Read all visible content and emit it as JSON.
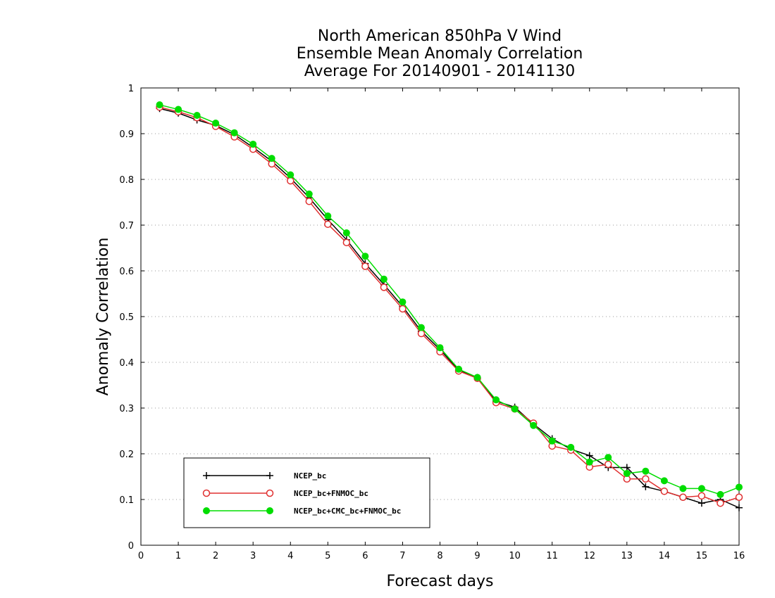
{
  "chart_data": {
    "type": "line",
    "title_lines": [
      "North American 850hPa V Wind",
      "Ensemble Mean Anomaly Correlation",
      "Average For 20140901 - 20141130"
    ],
    "xlabel": "Forecast days",
    "ylabel": "Anomaly Correlation",
    "xlim": [
      0,
      16
    ],
    "ylim": [
      0,
      1
    ],
    "xticks": [
      0,
      1,
      2,
      3,
      4,
      5,
      6,
      7,
      8,
      9,
      10,
      11,
      12,
      13,
      14,
      15,
      16
    ],
    "yticks": [
      0,
      0.1,
      0.2,
      0.3,
      0.4,
      0.5,
      0.6,
      0.7,
      0.8,
      0.9,
      1
    ],
    "ytick_labels": [
      "0",
      "0.1",
      "0.2",
      "0.3",
      "0.4",
      "0.5",
      "0.6",
      "0.7",
      "0.8",
      "0.9",
      "1"
    ],
    "grid": "horizontal-dotted",
    "legend_position": "bottom-left",
    "x": [
      0.5,
      1,
      1.5,
      2,
      2.5,
      3,
      3.5,
      4,
      4.5,
      5,
      5.5,
      6,
      6.5,
      7,
      7.5,
      8,
      8.5,
      9,
      9.5,
      10,
      10.5,
      11,
      11.5,
      12,
      12.5,
      13,
      13.5,
      14,
      14.5,
      15,
      15.5,
      16
    ],
    "series": [
      {
        "name": "NCEP_bc",
        "color": "#000000",
        "marker": "plus",
        "values": [
          0.955,
          0.945,
          0.93,
          0.918,
          0.898,
          0.87,
          0.84,
          0.803,
          0.76,
          0.712,
          0.668,
          0.616,
          0.57,
          0.522,
          0.468,
          0.428,
          0.383,
          0.367,
          0.315,
          0.302,
          0.265,
          0.233,
          0.21,
          0.196,
          0.17,
          0.17,
          0.128,
          0.118,
          0.105,
          0.092,
          0.1,
          0.082
        ]
      },
      {
        "name": "NCEP_bc+FNMOC_bc",
        "color": "#e03030",
        "marker": "open-circle",
        "values": [
          0.958,
          0.948,
          0.935,
          0.916,
          0.893,
          0.866,
          0.834,
          0.797,
          0.752,
          0.702,
          0.662,
          0.61,
          0.564,
          0.517,
          0.463,
          0.423,
          0.381,
          0.365,
          0.312,
          0.298,
          0.267,
          0.217,
          0.208,
          0.171,
          0.177,
          0.145,
          0.145,
          0.118,
          0.105,
          0.108,
          0.092,
          0.105
        ]
      },
      {
        "name": "NCEP_bc+CMC_bc+FNMOC_bc",
        "color": "#00dd00",
        "marker": "filled-circle",
        "values": [
          0.963,
          0.953,
          0.94,
          0.923,
          0.902,
          0.877,
          0.846,
          0.81,
          0.768,
          0.72,
          0.683,
          0.632,
          0.582,
          0.532,
          0.476,
          0.432,
          0.385,
          0.367,
          0.318,
          0.298,
          0.262,
          0.228,
          0.214,
          0.182,
          0.192,
          0.157,
          0.162,
          0.141,
          0.124,
          0.124,
          0.111,
          0.127
        ]
      }
    ]
  }
}
